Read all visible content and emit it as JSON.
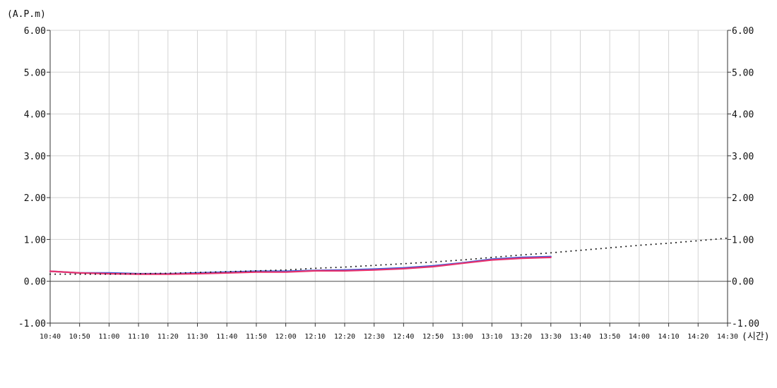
{
  "chart_data": {
    "type": "line",
    "ylabel": "(A.P.m)",
    "xlabel": "(시간)",
    "ylim": [
      -1,
      6
    ],
    "y_ticks": [
      "6.00",
      "5.00",
      "4.00",
      "3.00",
      "2.00",
      "1.00",
      "0.00",
      "-1.00"
    ],
    "y_tick_values": [
      6,
      5,
      4,
      3,
      2,
      1,
      0,
      -1
    ],
    "x_ticks": [
      "10:40",
      "10:50",
      "11:00",
      "11:10",
      "11:20",
      "11:30",
      "11:40",
      "11:50",
      "12:00",
      "12:10",
      "12:20",
      "12:30",
      "12:40",
      "12:50",
      "13:00",
      "13:10",
      "13:20",
      "13:30",
      "13:40",
      "13:50",
      "14:00",
      "14:10",
      "14:20",
      "14:30"
    ],
    "grid": true,
    "dual_y_axis": true,
    "series": [
      {
        "color": "#3a5bd9",
        "style": "solid",
        "x": [
          "10:40",
          "10:50",
          "11:00",
          "11:10",
          "11:20",
          "11:30",
          "11:40",
          "11:50",
          "12:00",
          "12:10",
          "12:20",
          "12:30",
          "12:40",
          "12:50",
          "13:00",
          "13:10",
          "13:20",
          "13:30"
        ],
        "values": [
          0.24,
          0.2,
          0.2,
          0.18,
          0.18,
          0.2,
          0.22,
          0.24,
          0.24,
          0.26,
          0.27,
          0.29,
          0.32,
          0.37,
          0.44,
          0.53,
          0.57,
          0.59
        ]
      },
      {
        "color": "#e8336e",
        "style": "solid",
        "x": [
          "10:40",
          "10:50",
          "11:00",
          "11:10",
          "11:20",
          "11:30",
          "11:40",
          "11:50",
          "12:00",
          "12:10",
          "12:20",
          "12:30",
          "12:40",
          "12:50",
          "13:00",
          "13:10",
          "13:20",
          "13:30"
        ],
        "values": [
          0.24,
          0.2,
          0.18,
          0.17,
          0.17,
          0.18,
          0.2,
          0.22,
          0.22,
          0.25,
          0.25,
          0.27,
          0.3,
          0.35,
          0.43,
          0.51,
          0.55,
          0.57
        ]
      },
      {
        "color": "#111111",
        "style": "dotted",
        "x": [
          "10:40",
          "10:50",
          "11:00",
          "11:10",
          "11:20",
          "11:30",
          "11:40",
          "11:50",
          "12:00",
          "12:10",
          "12:20",
          "12:30",
          "12:40",
          "12:50",
          "13:00",
          "13:10",
          "13:20",
          "13:30",
          "13:40",
          "13:50",
          "14:00",
          "14:10",
          "14:20",
          "14:30"
        ],
        "values": [
          0.17,
          0.17,
          0.17,
          0.18,
          0.19,
          0.21,
          0.23,
          0.25,
          0.27,
          0.31,
          0.34,
          0.38,
          0.42,
          0.46,
          0.51,
          0.57,
          0.63,
          0.68,
          0.74,
          0.8,
          0.86,
          0.91,
          0.97,
          1.03
        ]
      }
    ]
  }
}
